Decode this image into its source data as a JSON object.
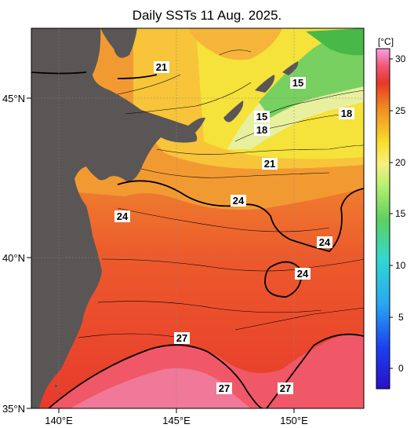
{
  "title": "Daily SSTs 11 Aug. 2025.",
  "colorbar": {
    "unit": "[°C]",
    "ticks": [
      "30",
      "25",
      "20",
      "15",
      "10",
      "5",
      "0"
    ]
  },
  "axes": {
    "lon_labels": [
      "140°E",
      "145°E",
      "150°E"
    ],
    "lat_labels": [
      "45°N",
      "40°N",
      "35°N"
    ]
  },
  "contour_labels": [
    {
      "text": "21"
    },
    {
      "text": "15"
    },
    {
      "text": "15"
    },
    {
      "text": "18"
    },
    {
      "text": "18"
    },
    {
      "text": "21"
    },
    {
      "text": "24"
    },
    {
      "text": "24"
    },
    {
      "text": "24"
    },
    {
      "text": "24"
    },
    {
      "text": "27"
    },
    {
      "text": "27"
    },
    {
      "text": "27"
    }
  ],
  "colors": {
    "land": "#5a5656",
    "warm": "#e8382a",
    "hot": "#f06070",
    "mid": "#f5a830",
    "cool": "#f5e23a",
    "cold": "#6ccf5a"
  }
}
